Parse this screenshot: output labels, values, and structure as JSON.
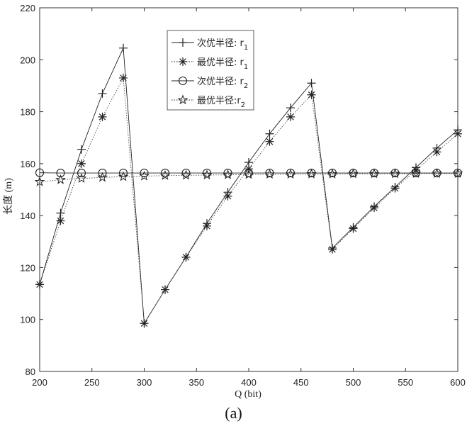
{
  "chart_data": {
    "type": "line",
    "title": "",
    "xlabel": "Q (bit)",
    "ylabel": "长度 (m)",
    "xlim": [
      200,
      600
    ],
    "ylim": [
      80,
      220
    ],
    "xticks": [
      200,
      250,
      300,
      350,
      400,
      450,
      500,
      550,
      600
    ],
    "yticks": [
      80,
      100,
      120,
      140,
      160,
      180,
      200,
      220
    ],
    "grid": false,
    "legend_position": "top-center",
    "series": [
      {
        "name": "次优半径: r1",
        "label_main": "次优半径: r",
        "label_sub": "1",
        "marker": "plus",
        "line_style": "solid",
        "x": [
          200,
          220,
          240,
          260,
          280,
          300,
          320,
          340,
          360,
          380,
          400,
          420,
          440,
          460,
          480,
          500,
          520,
          540,
          560,
          580,
          600
        ],
        "y": [
          113.5,
          141,
          165.5,
          187,
          204.5,
          98.5,
          111.5,
          124,
          137,
          149,
          160.5,
          171.5,
          181.5,
          191,
          127.5,
          135.5,
          143.5,
          151,
          158.5,
          166,
          173
        ]
      },
      {
        "name": "最优半径: r1",
        "label_main": "最优半径: r",
        "label_sub": "1",
        "marker": "asterisk",
        "line_style": "dotted",
        "x": [
          200,
          220,
          240,
          260,
          280,
          300,
          320,
          340,
          360,
          380,
          400,
          420,
          440,
          460,
          480,
          500,
          520,
          540,
          560,
          580,
          600
        ],
        "y": [
          113.5,
          138,
          160,
          178,
          193,
          98.5,
          111.5,
          124,
          136,
          147.5,
          158,
          168.5,
          178,
          186.5,
          127,
          135,
          143,
          150.5,
          157.5,
          164.5,
          171.5
        ]
      },
      {
        "name": "次优半径: r2",
        "label_main": "次优半径: r",
        "label_sub": "2",
        "marker": "circle",
        "line_style": "solid",
        "x": [
          200,
          220,
          240,
          260,
          280,
          300,
          320,
          340,
          360,
          380,
          400,
          420,
          440,
          460,
          480,
          500,
          520,
          540,
          560,
          580,
          600
        ],
        "y": [
          156.5,
          156.4,
          156.4,
          156.4,
          156.4,
          156.4,
          156.4,
          156.4,
          156.4,
          156.4,
          156.4,
          156.4,
          156.4,
          156.4,
          156.4,
          156.4,
          156.4,
          156.4,
          156.4,
          156.4,
          156.4
        ]
      },
      {
        "name": "最优半径:r2",
        "label_main": "最优半径:r",
        "label_sub": "2",
        "marker": "star",
        "line_style": "dotted",
        "x": [
          200,
          220,
          240,
          260,
          280,
          300,
          320,
          340,
          360,
          380,
          400,
          420,
          440,
          460,
          480,
          500,
          520,
          540,
          560,
          580,
          600
        ],
        "y": [
          153,
          153.8,
          154.3,
          154.7,
          155,
          155.2,
          155.4,
          155.5,
          155.6,
          155.7,
          155.8,
          155.9,
          155.9,
          156,
          156,
          156.1,
          156.1,
          156.1,
          156.2,
          156.2,
          156.2
        ]
      }
    ]
  },
  "caption": "(a)"
}
